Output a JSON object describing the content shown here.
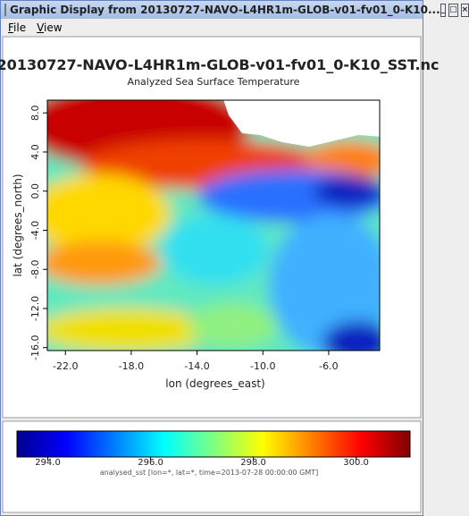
{
  "window": {
    "title": "Graphic Display from 20130727-NAVO-L4HR1m-GLOB-v01-fv01_0-K10...",
    "menu": [
      "File",
      "View"
    ]
  },
  "chart_data": {
    "type": "heatmap",
    "title": "20130727-NAVO-L4HR1m-GLOB-v01-fv01_0-K10_SST.nc",
    "subtitle": "Analyzed Sea Surface Temperature",
    "xlabel": "lon (degrees_east)",
    "ylabel": "lat (degrees_north)",
    "xlim": [
      -23.1,
      -2.9
    ],
    "xticks": [
      {
        "value": -22,
        "label": "-22.0"
      },
      {
        "value": -18,
        "label": "-18.0"
      },
      {
        "value": -14,
        "label": "-14.0"
      },
      {
        "value": -10,
        "label": "-10.0"
      },
      {
        "value": -6,
        "label": "-6.0"
      }
    ],
    "ylim": [
      -16.3,
      9.3
    ],
    "yticks": [
      {
        "value": 8,
        "label": "8.0"
      },
      {
        "value": 4,
        "label": "4.0"
      },
      {
        "value": 0,
        "label": "0.0"
      },
      {
        "value": -4,
        "label": "-4.0"
      },
      {
        "value": -8,
        "label": "-8.0"
      },
      {
        "value": -12,
        "label": "-12.0"
      },
      {
        "value": -16,
        "label": "-16.0"
      }
    ],
    "colorbar": {
      "lim": [
        293.4,
        301.05
      ],
      "ticks": [
        {
          "value": 294,
          "label": "294.0"
        },
        {
          "value": 296,
          "label": "296.0"
        },
        {
          "value": 298,
          "label": "298.0"
        },
        {
          "value": 300,
          "label": "300.0"
        }
      ],
      "label": "analysed_sst [lon=*, lat=*, time=2013-07-28 00:00:00 GMT]"
    }
  }
}
